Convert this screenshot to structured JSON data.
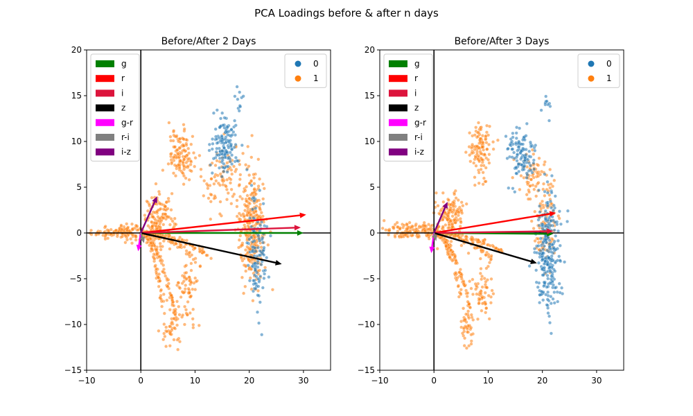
{
  "figure": {
    "title": "PCA Loadings before & after n days"
  },
  "chart_data": [
    {
      "type": "scatter",
      "title": "Before/After 2 Days",
      "xlim": [
        -10,
        35
      ],
      "ylim": [
        -15,
        20
      ],
      "xticks": [
        -10,
        0,
        10,
        20,
        30
      ],
      "yticks": [
        -15,
        -10,
        -5,
        0,
        5,
        10,
        15,
        20
      ],
      "xticklabels": [
        "−10",
        "0",
        "10",
        "20",
        "30"
      ],
      "yticklabels": [
        "−15",
        "−10",
        "−5",
        "0",
        "5",
        "10",
        "15",
        "20"
      ],
      "grid": false,
      "scatter_legend_position": "upper-right",
      "scatter_legend": [
        {
          "label": "0",
          "color": "#1f77b4"
        },
        {
          "label": "1",
          "color": "#ff7f0e"
        }
      ],
      "arrow_legend_position": "upper-left",
      "loadings": [
        {
          "label": "g",
          "color": "#008000",
          "x": 30.0,
          "y": 0.0
        },
        {
          "label": "r",
          "color": "#ff0000",
          "x": 30.5,
          "y": 2.0
        },
        {
          "label": "i",
          "color": "#dc143c",
          "x": 29.5,
          "y": 0.6
        },
        {
          "label": "z",
          "color": "#000000",
          "x": 26.0,
          "y": -3.4
        },
        {
          "label": "g-r",
          "color": "#ff00ff",
          "x": -0.5,
          "y": -2.0
        },
        {
          "label": "r-i",
          "color": "#808080",
          "x": 0.6,
          "y": -1.1
        },
        {
          "label": "i-z",
          "color": "#800080",
          "x": 3.0,
          "y": 4.0
        }
      ],
      "clusters": [
        {
          "label": "1",
          "cx": -3.0,
          "cy": 0.1,
          "sx": 3.0,
          "sy": 0.4,
          "n": 160
        },
        {
          "label": "1",
          "cx": 3.5,
          "cy": 1.5,
          "sx": 1.3,
          "sy": 1.3,
          "n": 130
        },
        {
          "label": "1",
          "cx": 7.5,
          "cy": 8.5,
          "sx": 1.2,
          "sy": 1.3,
          "n": 120
        },
        {
          "label": "1",
          "cx": 15.0,
          "cy": 6.0,
          "sx": 2.0,
          "sy": 2.0,
          "n": 80
        },
        {
          "label": "1",
          "cx": 20.5,
          "cy": 0.5,
          "sx": 1.3,
          "sy": 3.2,
          "n": 300
        },
        {
          "label": "1",
          "cx": 8.5,
          "cy": -6.5,
          "sx": 1.0,
          "sy": 1.8,
          "n": 70
        },
        {
          "label": "1",
          "cx": 5.5,
          "cy": -10.5,
          "sx": 0.8,
          "sy": 1.3,
          "n": 40
        },
        {
          "label": "0",
          "cx": 15.5,
          "cy": 9.5,
          "sx": 1.2,
          "sy": 1.5,
          "n": 130
        },
        {
          "label": "0",
          "cx": 21.5,
          "cy": -1.5,
          "sx": 1.0,
          "sy": 3.5,
          "n": 110
        },
        {
          "label": "0",
          "cx": 18.0,
          "cy": 14.0,
          "sx": 0.5,
          "sy": 1.0,
          "n": 10
        }
      ],
      "arcs": [
        {
          "x0": 0,
          "y0": 0,
          "x1": 13.0,
          "y1": -2.6,
          "p": 2.0,
          "n": 70
        },
        {
          "x0": 0,
          "y0": 0,
          "x1": 11.0,
          "y1": -3.5,
          "p": 2.0,
          "n": 60
        },
        {
          "x0": 0,
          "y0": 0,
          "x1": 6.5,
          "y1": -9.5,
          "p": 2.0,
          "n": 90
        },
        {
          "x0": 0,
          "y0": 0,
          "x1": 4.0,
          "y1": -7.5,
          "p": 2.0,
          "n": 60
        }
      ]
    },
    {
      "type": "scatter",
      "title": "Before/After 3 Days",
      "xlim": [
        -10,
        35
      ],
      "ylim": [
        -15,
        20
      ],
      "xticks": [
        -10,
        0,
        10,
        20,
        30
      ],
      "yticks": [
        -15,
        -10,
        -5,
        0,
        5,
        10,
        15,
        20
      ],
      "xticklabels": [
        "−10",
        "0",
        "10",
        "20",
        "30"
      ],
      "yticklabels": [
        "−15",
        "−10",
        "−5",
        "0",
        "5",
        "10",
        "15",
        "20"
      ],
      "grid": false,
      "scatter_legend_position": "upper-right",
      "scatter_legend": [
        {
          "label": "0",
          "color": "#1f77b4"
        },
        {
          "label": "1",
          "color": "#ff7f0e"
        }
      ],
      "arrow_legend_position": "upper-left",
      "loadings": [
        {
          "label": "g",
          "color": "#008000",
          "x": 22.0,
          "y": -0.1
        },
        {
          "label": "r",
          "color": "#ff0000",
          "x": 22.5,
          "y": 2.2
        },
        {
          "label": "i",
          "color": "#dc143c",
          "x": 22.0,
          "y": 0.2
        },
        {
          "label": "z",
          "color": "#000000",
          "x": 19.0,
          "y": -3.3
        },
        {
          "label": "g-r",
          "color": "#ff00ff",
          "x": -0.5,
          "y": -2.2
        },
        {
          "label": "r-i",
          "color": "#808080",
          "x": 0.4,
          "y": -0.9
        },
        {
          "label": "i-z",
          "color": "#800080",
          "x": 2.5,
          "y": 3.4
        }
      ],
      "clusters": [
        {
          "label": "1",
          "cx": -3.0,
          "cy": 0.2,
          "sx": 2.8,
          "sy": 0.4,
          "n": 150
        },
        {
          "label": "1",
          "cx": 3.0,
          "cy": 2.0,
          "sx": 1.3,
          "sy": 1.3,
          "n": 130
        },
        {
          "label": "1",
          "cx": 8.5,
          "cy": 9.0,
          "sx": 1.0,
          "sy": 1.4,
          "n": 110
        },
        {
          "label": "1",
          "cx": 18.0,
          "cy": 6.0,
          "sx": 1.2,
          "sy": 1.5,
          "n": 60
        },
        {
          "label": "1",
          "cx": 20.5,
          "cy": 1.0,
          "sx": 1.0,
          "sy": 2.5,
          "n": 110
        },
        {
          "label": "1",
          "cx": 9.0,
          "cy": -6.5,
          "sx": 1.0,
          "sy": 1.5,
          "n": 60
        },
        {
          "label": "1",
          "cx": 6.0,
          "cy": -10.5,
          "sx": 0.7,
          "sy": 1.2,
          "n": 40
        },
        {
          "label": "0",
          "cx": 16.0,
          "cy": 8.5,
          "sx": 1.3,
          "sy": 1.4,
          "n": 110
        },
        {
          "label": "0",
          "cx": 21.0,
          "cy": -2.0,
          "sx": 1.3,
          "sy": 3.2,
          "n": 260
        },
        {
          "label": "0",
          "cx": 20.5,
          "cy": 14.0,
          "sx": 0.5,
          "sy": 1.0,
          "n": 10
        }
      ],
      "arcs": [
        {
          "x0": 0,
          "y0": 0,
          "x1": 13.0,
          "y1": -2.2,
          "p": 2.0,
          "n": 70
        },
        {
          "x0": 0,
          "y0": 0,
          "x1": 11.0,
          "y1": -3.0,
          "p": 2.0,
          "n": 60
        },
        {
          "x0": 0,
          "y0": 0,
          "x1": 7.0,
          "y1": -9.0,
          "p": 2.0,
          "n": 90
        },
        {
          "x0": 0,
          "y0": 0,
          "x1": 5.0,
          "y1": -7.0,
          "p": 2.0,
          "n": 60
        }
      ]
    }
  ]
}
